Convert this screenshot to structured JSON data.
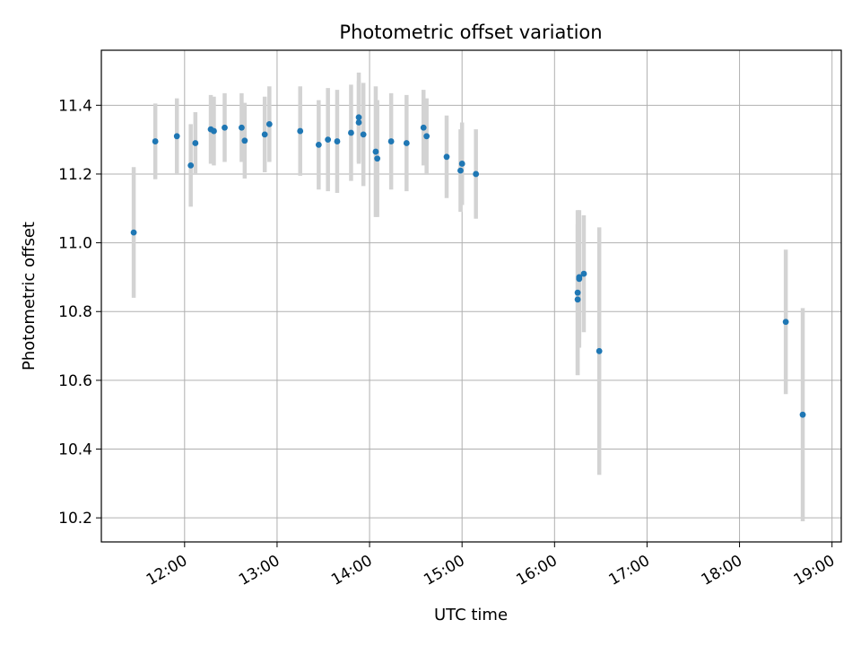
{
  "chart_data": {
    "type": "scatter",
    "title": "Photometric offset variation",
    "xlabel": "UTC time",
    "ylabel": "Photometric offset",
    "x_unit": "UTC time (HH:MM)",
    "xlim": [
      "11:06",
      "19:06"
    ],
    "ylim": [
      10.13,
      11.56
    ],
    "grid": true,
    "legend": "none",
    "x_ticks": [
      "12:00",
      "13:00",
      "14:00",
      "15:00",
      "16:00",
      "17:00",
      "18:00",
      "19:00"
    ],
    "y_ticks": [
      10.2,
      10.4,
      10.6,
      10.8,
      11.0,
      11.2,
      11.4
    ],
    "y_tick_labels": [
      "10.2",
      "10.4",
      "10.6",
      "10.8",
      "11.0",
      "11.2",
      "11.4"
    ],
    "colors": {
      "point": "#1f77b4",
      "errorbar": "#d3d3d3",
      "grid": "#b0b0b0"
    },
    "series": [
      {
        "x": [
          "11:27",
          "11:41",
          "11:55",
          "12:04",
          "12:07",
          "12:17",
          "12:19",
          "12:26",
          "12:37",
          "12:39",
          "12:52",
          "12:55",
          "13:15",
          "13:27",
          "13:33",
          "13:39",
          "13:48",
          "13:53",
          "13:53",
          "13:56",
          "14:04",
          "14:05",
          "14:14",
          "14:24",
          "14:35",
          "14:37",
          "14:50",
          "14:59",
          "15:00",
          "15:09",
          "16:15",
          "16:15",
          "16:16",
          "16:16",
          "16:19",
          "16:29",
          "18:30",
          "18:41"
        ],
        "y": [
          11.03,
          11.295,
          11.31,
          11.225,
          11.29,
          11.33,
          11.325,
          11.335,
          11.335,
          11.297,
          11.315,
          11.345,
          11.325,
          11.285,
          11.3,
          11.295,
          11.32,
          11.365,
          11.35,
          11.315,
          11.265,
          11.245,
          11.295,
          11.29,
          11.335,
          11.31,
          11.25,
          11.21,
          11.23,
          11.2,
          10.835,
          10.855,
          10.895,
          10.9,
          10.91,
          10.685,
          10.77,
          10.5
        ],
        "yerr": [
          0.19,
          0.11,
          0.11,
          0.12,
          0.09,
          0.1,
          0.1,
          0.1,
          0.1,
          0.11,
          0.11,
          0.11,
          0.13,
          0.13,
          0.15,
          0.15,
          0.14,
          0.13,
          0.12,
          0.15,
          0.19,
          0.17,
          0.14,
          0.14,
          0.11,
          0.11,
          0.12,
          0.12,
          0.12,
          0.13,
          0.22,
          0.24,
          0.2,
          0.18,
          0.17,
          0.36,
          0.21,
          0.31
        ]
      }
    ]
  }
}
